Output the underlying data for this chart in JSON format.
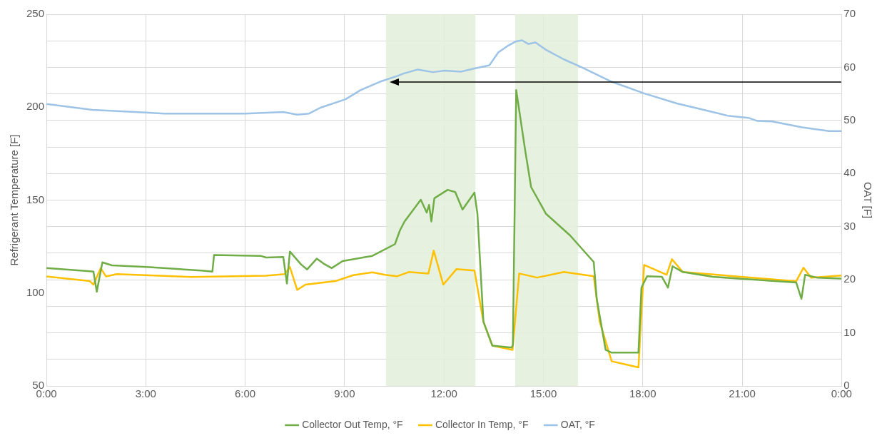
{
  "chart_data": {
    "type": "line",
    "ylabel": "Refrigerant Temperature [F]",
    "y2label": "OAT [F]",
    "legend": "bottom",
    "grid": true,
    "marker": "none",
    "line_style": "solid",
    "xlim": [
      0,
      24
    ],
    "xticks": [
      {
        "value": 0,
        "label": "0:00"
      },
      {
        "value": 3,
        "label": "3:00"
      },
      {
        "value": 6,
        "label": "6:00"
      },
      {
        "value": 9,
        "label": "9:00"
      },
      {
        "value": 12,
        "label": "12:00"
      },
      {
        "value": 15,
        "label": "15:00"
      },
      {
        "value": 18,
        "label": "18:00"
      },
      {
        "value": 21,
        "label": "21:00"
      },
      {
        "value": 24,
        "label": "0:00"
      }
    ],
    "ylim": [
      50,
      250
    ],
    "yticks": [
      50,
      100,
      150,
      200,
      250
    ],
    "y2lim": [
      0,
      70
    ],
    "y2ticks": [
      0,
      {
        "value": 5,
        "label": null
      },
      10,
      {
        "value": 15,
        "label": null
      },
      20,
      {
        "value": 25,
        "label": null
      },
      30,
      {
        "value": 35,
        "label": null
      },
      40,
      {
        "value": 45,
        "label": null
      },
      50,
      {
        "value": 55,
        "label": null
      },
      60,
      {
        "value": 65,
        "label": null
      },
      70
    ],
    "bands": [
      {
        "axis": "x",
        "from": 10.25,
        "to": 12.95,
        "color": "#e2efda"
      },
      {
        "axis": "x",
        "from": 14.15,
        "to": 16.05,
        "color": "#e2efda"
      }
    ],
    "series": [
      {
        "name": "Collector Out Temp, °F",
        "color": "#70ad47",
        "x": [
          0,
          1.31,
          1.42,
          1.52,
          1.69,
          1.98,
          3.03,
          4.67,
          5.01,
          5.06,
          6.47,
          6.63,
          7.15,
          7.26,
          7.35,
          7.69,
          7.87,
          8.16,
          8.36,
          8.61,
          8.94,
          9.84,
          10.52,
          10.67,
          10.81,
          11.3,
          11.48,
          11.55,
          11.62,
          11.71,
          12.11,
          12.34,
          12.56,
          12.92,
          13.01,
          13.19,
          13.46,
          14.04,
          14.08,
          14.18,
          14.45,
          14.63,
          15.08,
          15.8,
          16.52,
          16.61,
          16.88,
          17.06,
          17.87,
          17.96,
          18.13,
          18.58,
          18.76,
          18.9,
          19.21,
          20.11,
          22.63,
          22.79,
          22.9,
          23.26,
          24
        ],
        "values": [
          113.4,
          111.7,
          111.5,
          100.7,
          116.5,
          114.9,
          114,
          112.1,
          111.5,
          120.4,
          120,
          119.1,
          119.4,
          105.1,
          122.3,
          115.3,
          112.7,
          118.5,
          115.9,
          113.4,
          117.2,
          120,
          126.3,
          133.7,
          138.5,
          150.2,
          143.3,
          147.4,
          138.5,
          151,
          155.5,
          154.3,
          144.9,
          154,
          142.6,
          84.6,
          71.7,
          70.6,
          72,
          209.2,
          176.9,
          157,
          142.6,
          131.1,
          116.7,
          96.9,
          69.4,
          67.9,
          67.9,
          102.9,
          109,
          108.7,
          102.9,
          114.4,
          111.3,
          108.7,
          105.7,
          96.9,
          109.8,
          108.3,
          107.8
        ]
      },
      {
        "name": "Collector In Temp, °F",
        "color": "#ffc000",
        "x": [
          0,
          1.31,
          1.42,
          1.64,
          1.8,
          2.13,
          4.38,
          6.63,
          7.19,
          7.35,
          7.57,
          7.82,
          8.72,
          9.26,
          9.84,
          10.22,
          10.58,
          10.94,
          11.53,
          11.69,
          11.98,
          12.38,
          12.92,
          13.19,
          13.46,
          14.07,
          14.27,
          14.81,
          15.62,
          16.52,
          16.7,
          17.06,
          17.87,
          18.04,
          18.72,
          18.88,
          19.21,
          22.63,
          22.85,
          23.08,
          24
        ],
        "values": [
          108.9,
          106.4,
          104.5,
          113.4,
          108.9,
          110.2,
          108.6,
          109.3,
          110.2,
          114,
          101.7,
          104.5,
          106.4,
          109.6,
          111.1,
          109.8,
          109,
          111.3,
          110.5,
          122.8,
          104.5,
          112.9,
          112.1,
          84.6,
          71.7,
          69.4,
          110.5,
          108.3,
          111.3,
          109,
          84.6,
          63.3,
          60,
          115.1,
          109.8,
          118.2,
          111.3,
          106.3,
          113.6,
          108.3,
          109.4
        ]
      },
      {
        "name": "OAT, °F",
        "color": "#9dc3e6",
        "axis": "y2",
        "x": [
          0,
          1.39,
          3,
          3.55,
          6,
          7.15,
          7.57,
          7.93,
          8.27,
          9.03,
          9.48,
          10.07,
          10.6,
          10.76,
          11.21,
          11.66,
          12.02,
          12.52,
          12.92,
          13.37,
          13.64,
          13.91,
          14.18,
          14.36,
          14.54,
          14.76,
          15.08,
          15.62,
          16.16,
          17.06,
          18.04,
          19.03,
          20.11,
          20.56,
          21.19,
          21.46,
          21.91,
          22.81,
          23.62,
          24
        ],
        "values": [
          53.1,
          52,
          51.5,
          51.3,
          51.3,
          51.6,
          51.1,
          51.3,
          52.4,
          54,
          55.7,
          57.3,
          58.4,
          58.8,
          59.6,
          59.1,
          59.4,
          59.2,
          59.8,
          60.4,
          62.8,
          64,
          64.9,
          65.1,
          64.4,
          64.7,
          63.3,
          61.5,
          60,
          57.3,
          55.1,
          53.2,
          51.6,
          50.9,
          50.5,
          49.9,
          49.8,
          48.7,
          48,
          48
        ]
      }
    ]
  }
}
